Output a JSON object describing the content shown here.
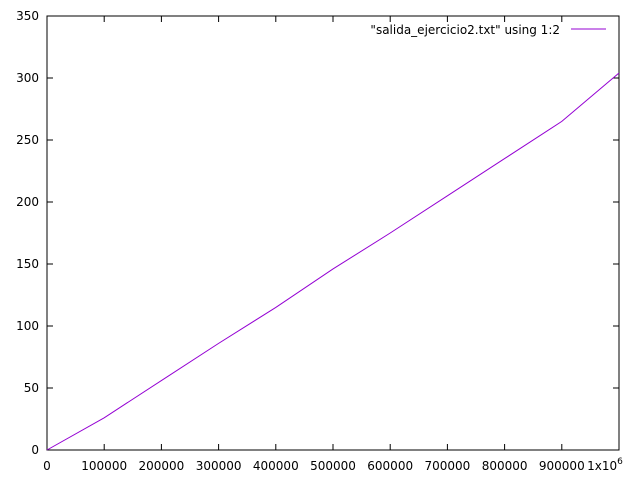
{
  "chart_data": {
    "type": "line",
    "title": "",
    "xlabel": "",
    "ylabel": "",
    "x_ticks": [
      "0",
      "100000",
      "200000",
      "300000",
      "400000",
      "500000",
      "600000",
      "700000",
      "800000",
      "900000",
      "1x10"
    ],
    "x_tick_values": [
      0,
      100000,
      200000,
      300000,
      400000,
      500000,
      600000,
      700000,
      800000,
      900000,
      1000000
    ],
    "x_last_tick_exponent": "6",
    "y_ticks": [
      "0",
      "50",
      "100",
      "150",
      "200",
      "250",
      "300",
      "350"
    ],
    "y_tick_values": [
      0,
      50,
      100,
      150,
      200,
      250,
      300,
      350
    ],
    "xlim": [
      0,
      1000000
    ],
    "ylim": [
      0,
      350
    ],
    "grid": false,
    "legend_position": "top-right",
    "series": [
      {
        "name": "\"salida_ejercicio2.txt\" using 1:2",
        "color": "#9400d3",
        "x": [
          0,
          100000,
          200000,
          300000,
          400000,
          500000,
          600000,
          700000,
          800000,
          900000,
          1000000
        ],
        "y": [
          0,
          26,
          56,
          86,
          115,
          146,
          175,
          205,
          235,
          265,
          304
        ]
      }
    ]
  }
}
